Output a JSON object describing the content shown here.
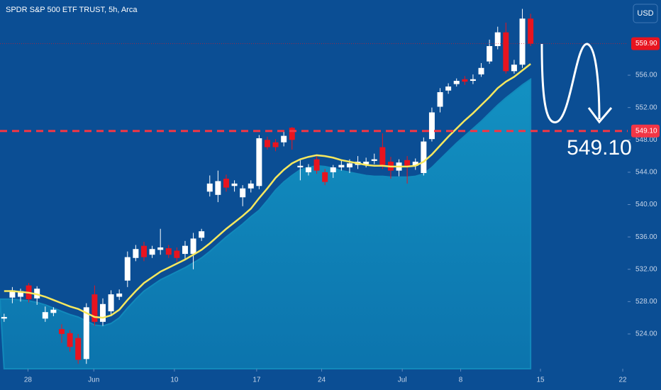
{
  "chart_data": {
    "type": "candlestick",
    "title": "SPDR S&P 500 ETF TRUST, 5h, Arca",
    "currency": "USD",
    "x": [
      0,
      1,
      2,
      3,
      4,
      5,
      6,
      7,
      8,
      9,
      10,
      11,
      12,
      13,
      14,
      15,
      16,
      17,
      18,
      19,
      20,
      21,
      22,
      23,
      24,
      25,
      26,
      27,
      28,
      29,
      30,
      31,
      32,
      33,
      34,
      35,
      36,
      37,
      38,
      39,
      40,
      41,
      42,
      43,
      44,
      45,
      46,
      47,
      48,
      49,
      50,
      51,
      52,
      53,
      54,
      55,
      56,
      57,
      58,
      59,
      60,
      61,
      62,
      63,
      64
    ],
    "open": [
      525.9,
      528.5,
      528.6,
      530.0,
      528.4,
      525.9,
      526.6,
      524.6,
      524.1,
      523.5,
      520.9,
      528.9,
      525.5,
      526.8,
      528.6,
      530.6,
      533.4,
      534.9,
      533.8,
      534.4,
      534.6,
      534.3,
      533.9,
      533.9,
      535.9,
      541.6,
      541.2,
      543.2,
      542.3,
      540.9,
      542.0,
      542.3,
      548.0,
      547.7,
      547.7,
      549.5,
      544.6,
      544.0,
      545.6,
      544.0,
      544.0,
      544.6,
      544.6,
      544.9,
      545.0,
      545.4,
      547.1,
      545.3,
      544.2,
      545.5,
      544.8,
      543.9,
      548.1,
      552.1,
      554.1,
      554.9,
      555.5,
      555.3,
      556.1,
      557.7,
      559.6,
      561.3,
      556.5,
      557.3,
      563.0
    ],
    "high": [
      526.5,
      529.8,
      529.6,
      530.3,
      529.9,
      527.4,
      527.3,
      525.2,
      524.5,
      524.0,
      527.8,
      530.0,
      528.4,
      529.4,
      529.5,
      534.2,
      535.0,
      535.4,
      534.9,
      537.0,
      535.0,
      534.7,
      535.5,
      536.5,
      537.0,
      543.6,
      544.2,
      543.7,
      543.0,
      542.4,
      543.0,
      548.6,
      548.4,
      548.1,
      549.0,
      549.6,
      545.6,
      545.0,
      546.0,
      544.4,
      544.9,
      545.4,
      545.6,
      546.0,
      545.8,
      546.3,
      548.8,
      545.9,
      545.6,
      546.0,
      545.7,
      548.3,
      552.0,
      554.4,
      555.0,
      555.6,
      555.9,
      556.1,
      557.5,
      560.4,
      562.0,
      562.5,
      557.9,
      564.2,
      563.6
    ],
    "low": [
      525.5,
      527.8,
      528.0,
      527.9,
      527.6,
      525.5,
      526.2,
      522.9,
      521.8,
      520.3,
      520.3,
      525.0,
      525.0,
      526.4,
      528.2,
      529.8,
      533.0,
      533.0,
      533.4,
      533.8,
      533.4,
      532.9,
      533.3,
      532.0,
      535.5,
      541.0,
      540.3,
      541.6,
      541.6,
      539.8,
      541.5,
      541.9,
      546.8,
      546.6,
      547.2,
      546.8,
      543.0,
      543.6,
      543.8,
      542.4,
      543.3,
      544.2,
      543.9,
      544.4,
      544.6,
      545.0,
      544.4,
      543.2,
      543.5,
      542.6,
      544.3,
      543.6,
      547.8,
      551.4,
      553.7,
      554.6,
      554.8,
      554.9,
      555.8,
      557.4,
      559.2,
      556.2,
      556.2,
      556.9,
      559.6
    ],
    "close": [
      526.1,
      529.4,
      529.3,
      528.3,
      529.6,
      526.7,
      527.0,
      524.0,
      522.4,
      520.8,
      527.3,
      525.5,
      527.7,
      528.9,
      529.0,
      533.5,
      534.5,
      533.5,
      534.5,
      534.7,
      533.8,
      533.4,
      534.9,
      535.8,
      536.7,
      542.6,
      542.9,
      542.1,
      542.6,
      542.0,
      542.6,
      548.2,
      547.1,
      547.1,
      548.5,
      548.0,
      544.8,
      544.6,
      544.2,
      542.8,
      544.6,
      544.9,
      545.1,
      545.3,
      545.3,
      545.6,
      544.9,
      544.2,
      545.2,
      544.8,
      545.3,
      547.8,
      551.4,
      553.9,
      554.6,
      555.3,
      555.2,
      555.5,
      556.9,
      559.6,
      561.3,
      556.5,
      557.3,
      563.0,
      559.9
    ],
    "up_color": "#ffffff",
    "down_color": "#e8141f",
    "ma": {
      "color": "#f7e85e",
      "values": [
        529.3,
        529.3,
        529.2,
        529.1,
        528.9,
        528.6,
        528.2,
        527.8,
        527.4,
        527.1,
        526.6,
        526.1,
        526.0,
        526.3,
        527.0,
        528.2,
        529.3,
        530.3,
        531.0,
        531.7,
        532.2,
        532.7,
        533.2,
        533.8,
        534.4,
        535.2,
        536.1,
        537.0,
        537.8,
        538.6,
        539.5,
        540.8,
        542.0,
        543.3,
        544.3,
        545.1,
        545.6,
        545.9,
        546.1,
        546.0,
        545.8,
        545.5,
        545.3,
        545.1,
        544.9,
        544.8,
        544.8,
        544.7,
        544.7,
        544.7,
        544.8,
        545.3,
        546.2,
        547.3,
        548.4,
        549.4,
        550.4,
        551.3,
        552.3,
        553.3,
        554.4,
        555.2,
        555.8,
        556.6,
        557.4
      ]
    },
    "area": {
      "color": "#1289bb",
      "values": [
        528.3,
        528.3,
        528.2,
        528.1,
        527.9,
        527.6,
        527.2,
        526.8,
        526.4,
        526.1,
        525.6,
        525.1,
        525.0,
        525.3,
        526.0,
        527.2,
        528.3,
        529.3,
        530.0,
        530.7,
        531.2,
        531.7,
        532.2,
        532.8,
        533.4,
        534.2,
        535.1,
        536.0,
        536.8,
        537.6,
        538.5,
        539.3,
        540.5,
        541.8,
        542.8,
        543.6,
        544.3,
        544.6,
        544.8,
        544.7,
        544.5,
        544.2,
        544.0,
        543.8,
        543.6,
        543.5,
        543.5,
        543.4,
        543.4,
        543.4,
        543.5,
        543.8,
        544.6,
        545.6,
        546.6,
        547.6,
        548.5,
        549.4,
        550.3,
        551.3,
        552.3,
        553.2,
        554.0,
        554.8,
        555.5
      ]
    },
    "xlim": [
      -0.5,
      75.8
    ],
    "ylim": [
      519.7,
      565.3
    ],
    "xticks": [
      {
        "value": 2.9,
        "label": "28"
      },
      {
        "value": 10.9,
        "label": "Jun"
      },
      {
        "value": 20.7,
        "label": "10"
      },
      {
        "value": 30.7,
        "label": "17"
      },
      {
        "value": 38.6,
        "label": "24"
      },
      {
        "value": 48.4,
        "label": "Jul"
      },
      {
        "value": 55.5,
        "label": "8"
      },
      {
        "value": 65.2,
        "label": "15"
      },
      {
        "value": 75.2,
        "label": "22"
      }
    ],
    "yticks": [
      {
        "value": 524,
        "label": "524.00"
      },
      {
        "value": 528,
        "label": "528.00"
      },
      {
        "value": 532,
        "label": "532.00"
      },
      {
        "value": 536,
        "label": "536.00"
      },
      {
        "value": 540,
        "label": "540.00"
      },
      {
        "value": 544,
        "label": "544.00"
      },
      {
        "value": 548,
        "label": "548.00"
      },
      {
        "value": 552,
        "label": "552.00"
      },
      {
        "value": 556,
        "label": "556.00"
      }
    ],
    "last_price": {
      "value": 559.9,
      "label": "559.90",
      "color": "#e8141f"
    },
    "level": {
      "value": 549.1,
      "label": "549.10",
      "color": "#f23645"
    },
    "annotation": "549.10"
  }
}
